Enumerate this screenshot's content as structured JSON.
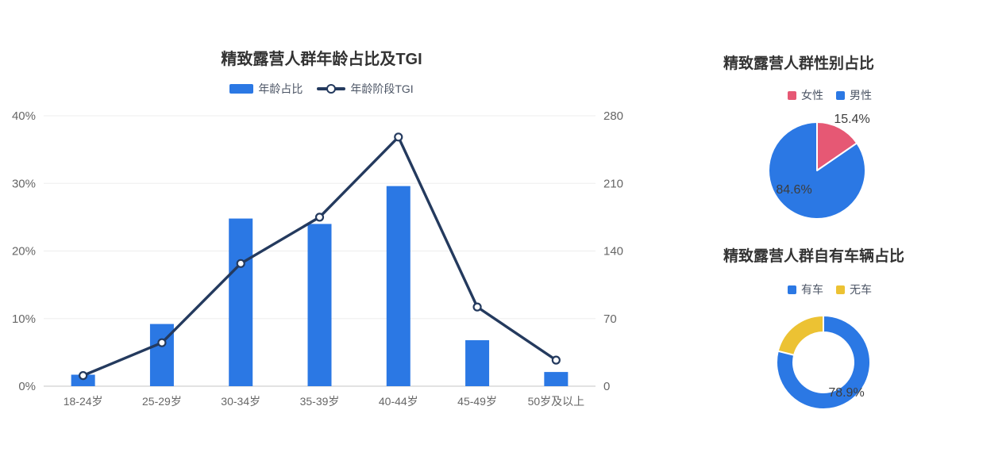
{
  "colors": {
    "background": "#ffffff",
    "title_text": "#333333",
    "axis_label_text": "#666666",
    "legend_text": "#4d5666",
    "data_label_text": "#3d3d3d",
    "gridline": "#ededed",
    "axis_line": "#d9d9d9",
    "bar_blue": "#2b78e4",
    "tgi_navy": "#243a5e",
    "female_pink": "#e65874",
    "male_blue": "#2b78e4",
    "has_car_blue": "#2b78e4",
    "no_car_yellow": "#ecc233"
  },
  "chart_data": [
    {
      "id": "age-tgi",
      "type": "bar+line",
      "title": "精致露营人群年龄占比及TGI",
      "categories": [
        "18-24岁",
        "25-29岁",
        "30-34岁",
        "35-39岁",
        "40-44岁",
        "45-49岁",
        "50岁及以上"
      ],
      "series": [
        {
          "name": "年龄占比",
          "type": "bar",
          "axis": "left",
          "unit": "%",
          "color": "#2b78e4",
          "values": [
            1.7,
            9.2,
            24.8,
            24.0,
            29.6,
            6.8,
            2.1
          ]
        },
        {
          "name": "年龄阶段TGI",
          "type": "line",
          "axis": "right",
          "color": "#243a5e",
          "values": [
            11,
            45,
            127,
            175,
            258,
            82,
            27
          ]
        }
      ],
      "left_axis": {
        "min": 0,
        "max": 40,
        "ticks": [
          "0%",
          "10%",
          "20%",
          "30%",
          "40%"
        ]
      },
      "right_axis": {
        "min": 0,
        "max": 280,
        "ticks": [
          "0",
          "70",
          "140",
          "210",
          "280"
        ]
      },
      "grid": true,
      "legend_position": "top-center"
    },
    {
      "id": "gender",
      "type": "pie",
      "title": "精致露营人群性别占比",
      "start_angle": "top",
      "direction": "clockwise",
      "legend_position": "top-center",
      "slices": [
        {
          "label": "女性",
          "value": 15.4,
          "color": "#e65874",
          "data_label": "15.4%"
        },
        {
          "label": "男性",
          "value": 84.6,
          "color": "#2b78e4",
          "data_label": "84.6%"
        }
      ]
    },
    {
      "id": "vehicle",
      "type": "donut",
      "title": "精致露营人群自有车辆占比",
      "start_angle": "top",
      "direction": "clockwise",
      "legend_position": "top-center",
      "slices": [
        {
          "label": "有车",
          "value": 78.9,
          "color": "#2b78e4",
          "data_label": "78.9%"
        },
        {
          "label": "无车",
          "value": 21.1,
          "color": "#ecc233",
          "data_label": ""
        }
      ]
    }
  ]
}
